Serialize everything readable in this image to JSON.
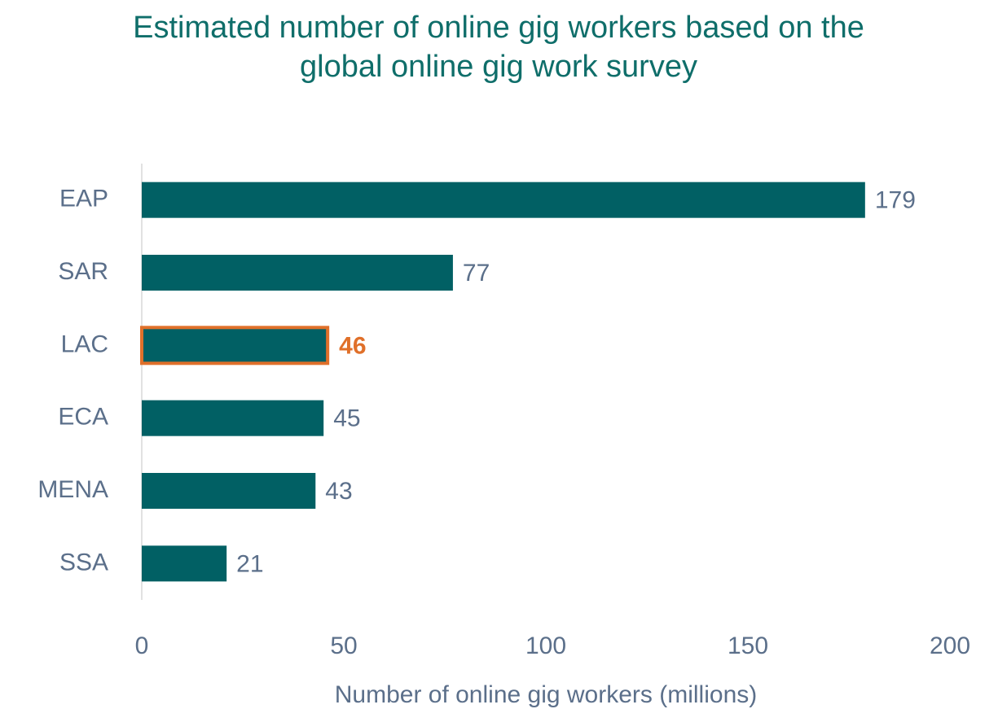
{
  "chart_data": {
    "type": "bar",
    "orientation": "horizontal",
    "title": "Estimated number of online gig workers based on the global online gig work survey",
    "x_label": "Number of online gig workers (millions)",
    "categories": [
      "EAP",
      "SAR",
      "LAC",
      "ECA",
      "MENA",
      "SSA"
    ],
    "values": [
      179,
      77,
      46,
      45,
      43,
      21
    ],
    "color": "#016064",
    "highlight": {
      "index": 2,
      "color": "#e0702a"
    },
    "xlim": [
      0,
      200
    ],
    "xticks": [
      0,
      50,
      100,
      150,
      200
    ],
    "grid": false
  }
}
